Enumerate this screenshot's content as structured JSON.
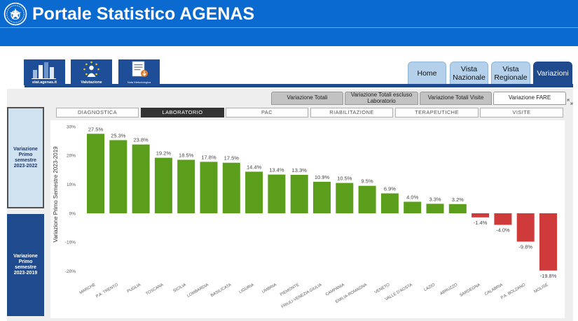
{
  "header": {
    "title": "Portale Statistico AGENAS",
    "logo_icon": "italian-republic-emblem-icon"
  },
  "shortcuts": [
    {
      "label": "stat.agenas.it",
      "icon": "bar-chart-icon"
    },
    {
      "label": "Valutazione",
      "icon": "stars-person-icon"
    },
    {
      "label": "Nota Metodologica",
      "icon": "document-download-icon"
    }
  ],
  "nav_tabs": [
    {
      "label": "Home",
      "active": false
    },
    {
      "label": "Vista Nazionale",
      "active": false
    },
    {
      "label": "Vista Regionale",
      "active": false
    },
    {
      "label": "Variazioni",
      "active": true
    }
  ],
  "sub_tabs": [
    {
      "label": "Variazione Totali",
      "active": false
    },
    {
      "label": "Variazione Totali escluso Laboratorio",
      "active": false
    },
    {
      "label": "Variazione Totali Visite",
      "active": false
    },
    {
      "label": "Variazione FARE",
      "active": true
    }
  ],
  "categories": [
    {
      "label": "DIAGNOSTICA",
      "active": false
    },
    {
      "label": "LABORATORIO",
      "active": true
    },
    {
      "label": "PAC",
      "active": false
    },
    {
      "label": "RIABILITAZIONE",
      "active": false
    },
    {
      "label": "TERAPEUTICHE",
      "active": false
    },
    {
      "label": "VISITE",
      "active": false
    }
  ],
  "period_buttons": [
    {
      "label": "Variazione Primo semestre 2023-2022",
      "active": false
    },
    {
      "label": "Variazione Primo semestre 2023-2019",
      "active": true
    }
  ],
  "icons": {
    "expand": "expand-icon"
  },
  "colors": {
    "header": "#0b6ad0",
    "accent": "#1f4b8e",
    "tab_inactive": "#b4d0ea",
    "bar_positive": "#5a9e1b",
    "bar_negative": "#cf3a3a"
  },
  "chart_data": {
    "type": "bar",
    "ylabel": "Variazione Primo Semestre 2023-2019",
    "categories": [
      "MARCHE",
      "P.A. TRENTO",
      "PUGLIA",
      "TOSCANA",
      "SICILIA",
      "LOMBARDIA",
      "BASILICATA",
      "LIGURIA",
      "UMBRIA",
      "PIEMONTE",
      "FRIULI-VENEZIA GIULIA",
      "CAMPANIA",
      "EMILIA-ROMAGNA",
      "VENETO",
      "VALLE D'AOSTA",
      "LAZIO",
      "ABRUZZO",
      "SARDEGNA",
      "CALABRIA",
      "P.A. BOLZANO",
      "MOLISE"
    ],
    "values": [
      27.5,
      25.3,
      23.8,
      19.2,
      18.5,
      17.8,
      17.5,
      14.4,
      13.4,
      13.3,
      10.9,
      10.5,
      9.5,
      6.9,
      4.0,
      3.3,
      3.2,
      -1.4,
      -4.0,
      -9.8,
      -19.8
    ],
    "data_labels": [
      "27.5%",
      "25.3%",
      "23.8%",
      "19.2%",
      "18.5%",
      "17.8%",
      "17.5%",
      "14.4%",
      "13.4%",
      "13.3%",
      "10.9%",
      "10.5%",
      "9.5%",
      "6.9%",
      "4.0%",
      "3.3%",
      "3.2%",
      "-1.4%",
      "-4.0%",
      "-9.8%",
      "-19.8%"
    ],
    "y_ticks": [
      30,
      20,
      10,
      0,
      -10,
      -20
    ],
    "y_tick_labels": [
      "30%",
      "20%",
      "10%",
      "0%",
      "-10%",
      "-20%"
    ],
    "ylim": [
      -20,
      30
    ],
    "grid": false,
    "legend": "none"
  }
}
